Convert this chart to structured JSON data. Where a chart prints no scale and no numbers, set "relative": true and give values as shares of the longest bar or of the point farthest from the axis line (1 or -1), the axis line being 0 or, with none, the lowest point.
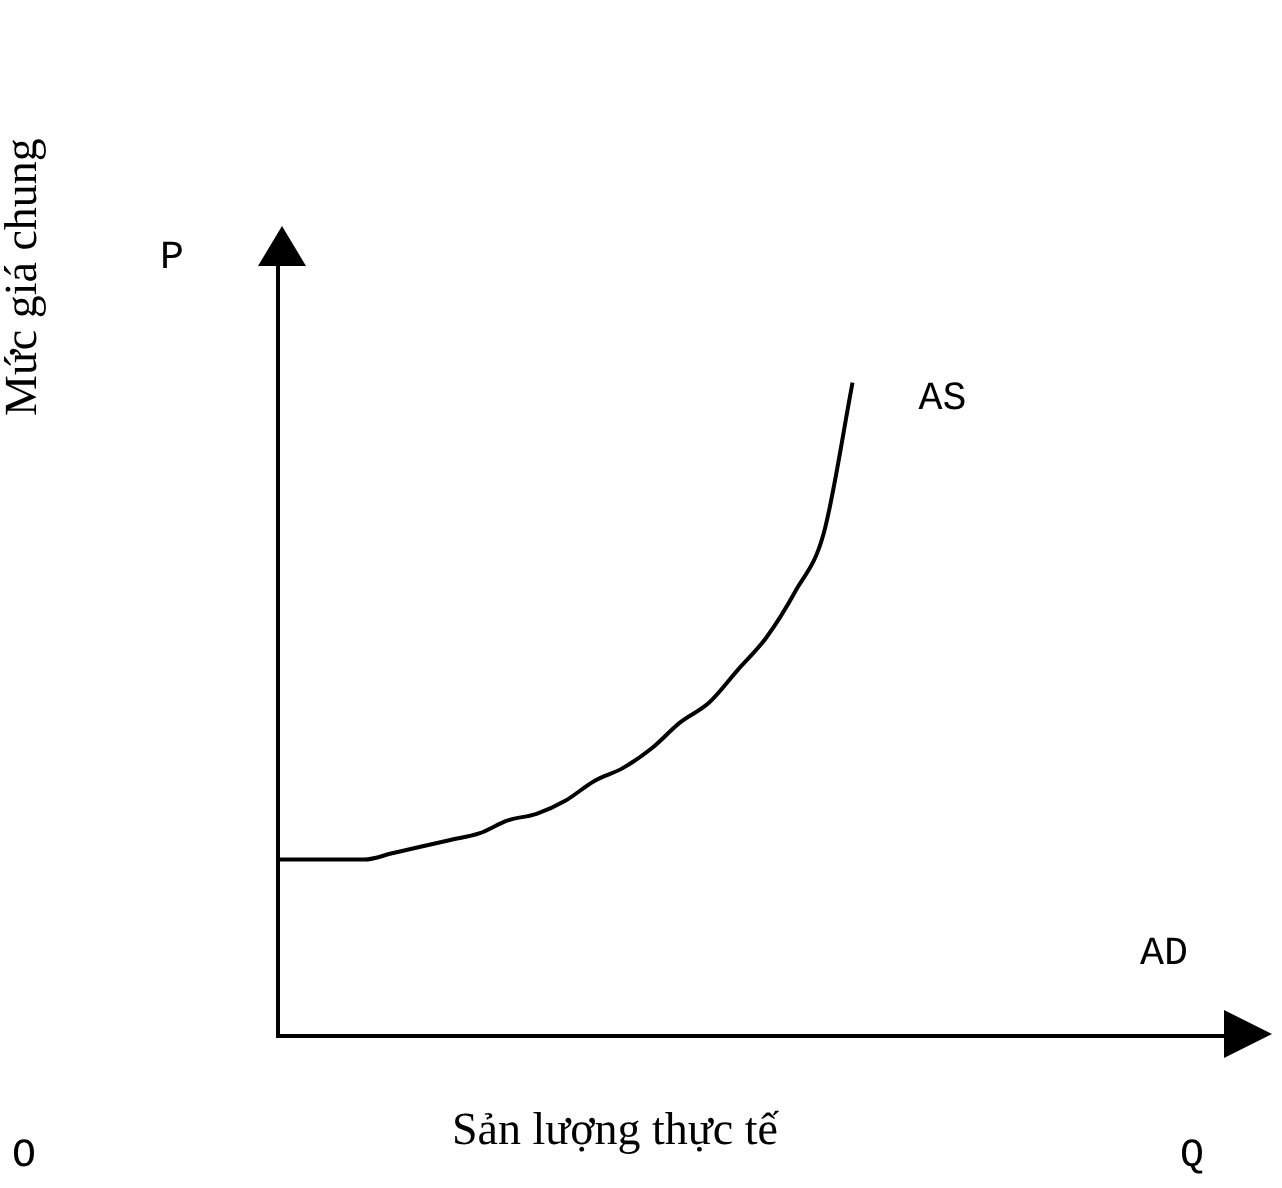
{
  "chart_data": {
    "type": "line",
    "relative": true,
    "xlabel": "Sản lượng thực tế",
    "ylabel": "Mức giá chung",
    "annotations": [
      "P",
      "Q",
      "AD",
      "O"
    ],
    "categories": [
      null,
      null,
      null,
      null,
      null,
      null,
      null,
      null,
      null,
      null,
      null,
      null,
      null,
      null,
      null,
      null,
      null,
      null,
      null,
      null,
      null,
      null,
      null,
      null,
      null,
      null,
      null,
      null,
      null,
      null,
      null,
      null,
      null,
      null
    ],
    "series": [
      {
        "name": "AS",
        "color": "#000000",
        "values": [
          0.27,
          0.27,
          0.27,
          0.27,
          0.28,
          0.29,
          0.3,
          0.31,
          0.33,
          0.34,
          0.36,
          0.39,
          0.41,
          0.44,
          0.48,
          0.51,
          0.56,
          0.61,
          0.68,
          0.77,
          1,
          null,
          null,
          null,
          null,
          null,
          null,
          null,
          null,
          null,
          null,
          null,
          null,
          null
        ]
      }
    ],
    "legend": false,
    "grid": false,
    "marker": "none",
    "line_style": "solid"
  }
}
